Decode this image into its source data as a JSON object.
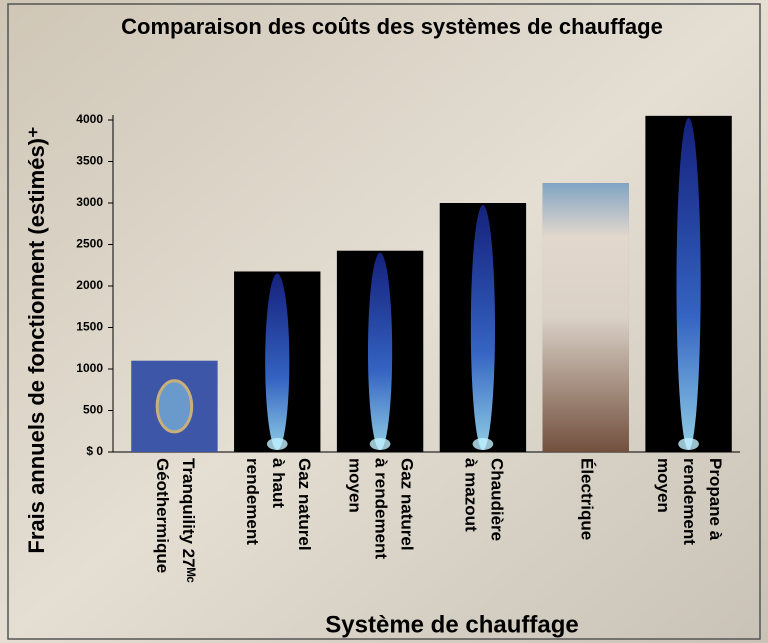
{
  "chart_data": {
    "type": "bar",
    "title": "Comparaison des coûts des systèmes de chauffage",
    "y_label": "Frais annuels de fonctionnent (estimés)⁺",
    "x_label": "Système de chauffage",
    "categories": [
      [
        "Tranquility 27ᴹᶜ",
        "Géothermique"
      ],
      [
        "Gaz naturel",
        "à haut",
        "rendement"
      ],
      [
        "Gaz naturel",
        "à rendement",
        "moyen"
      ],
      [
        "Chaudière",
        "à mazout"
      ],
      [
        "Électrique"
      ],
      [
        "Propane à",
        "rendement",
        "moyen"
      ]
    ],
    "values": [
      1100,
      2175,
      2425,
      3000,
      3240,
      4050
    ],
    "colors": [
      "#3d56a8",
      "#000000",
      "#000000",
      "#000000",
      "#8a6450",
      "#000000"
    ],
    "ylim": [
      0,
      4000
    ],
    "yticks": [
      {
        "value": 0,
        "label": "$ 0"
      },
      500,
      1000,
      1500,
      2000,
      2500,
      3000,
      3500,
      4000
    ]
  }
}
